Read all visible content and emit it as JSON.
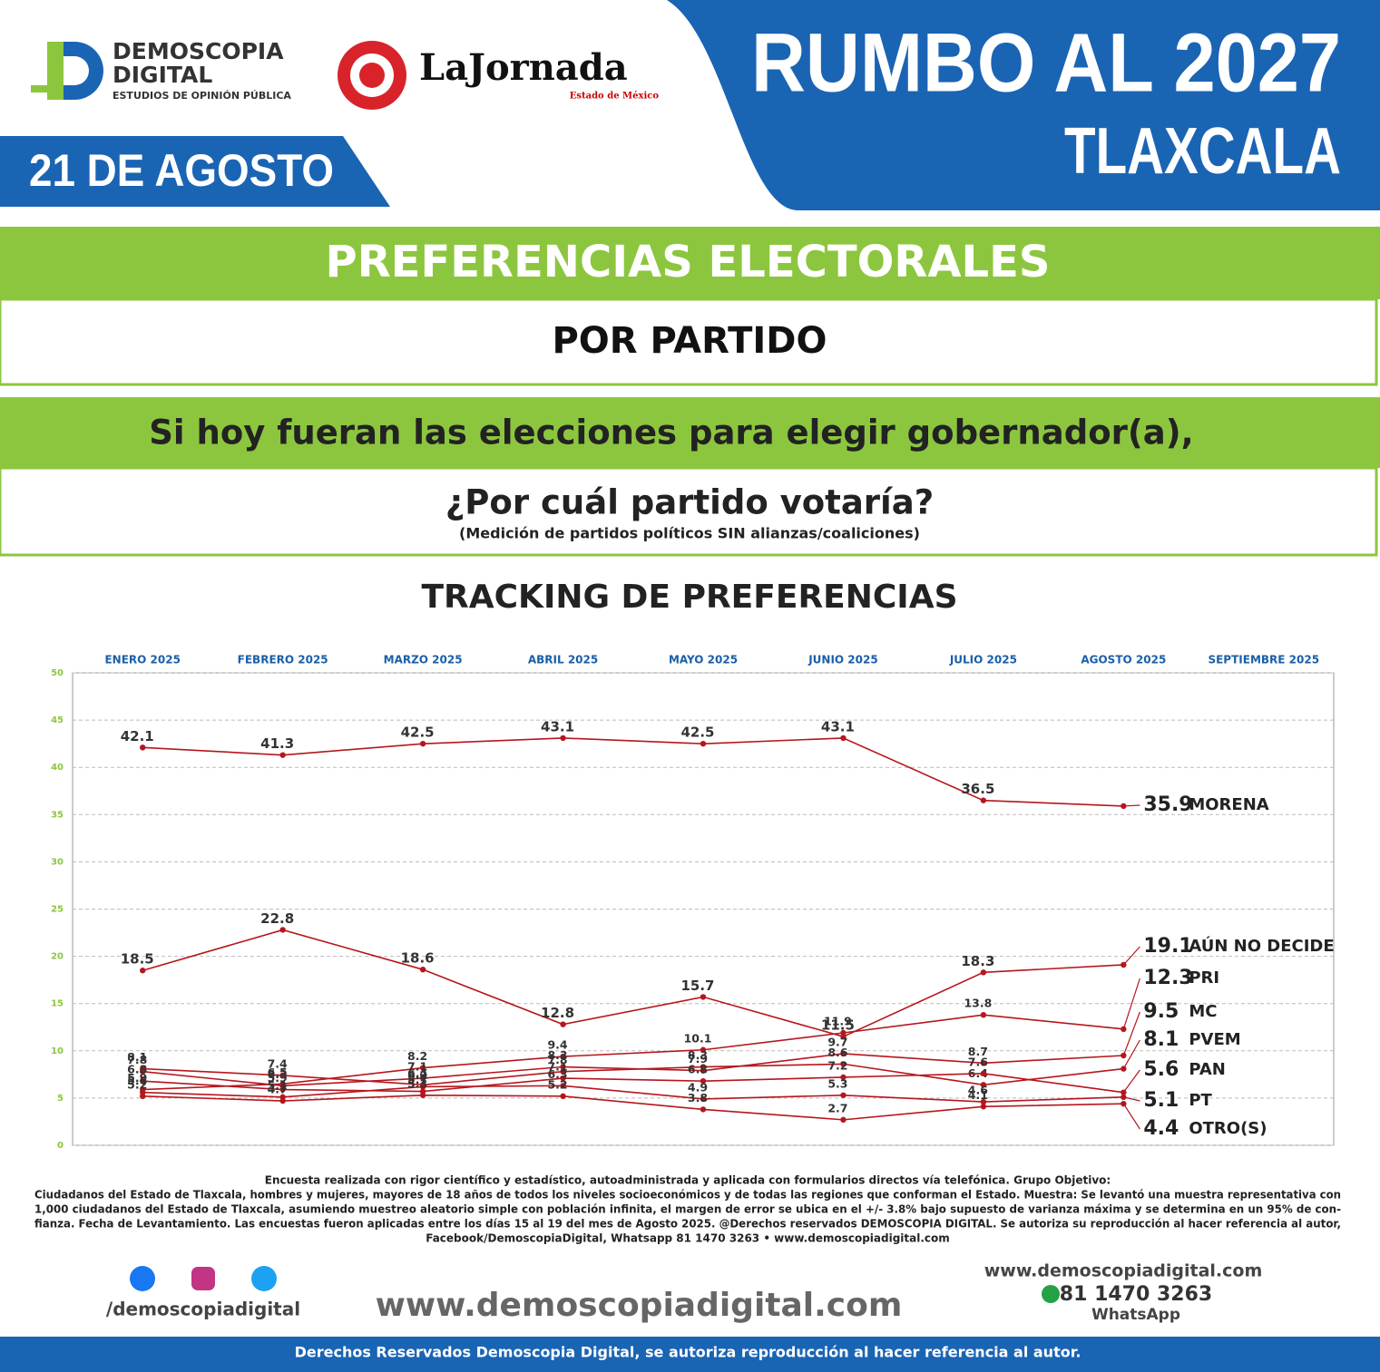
{
  "header": {
    "brand": [
      "DEMOSCOPIA",
      "DIGITAL",
      "ESTUDIOS DE OPINIÓN PÚBLICA"
    ],
    "partner": [
      "LaJornada",
      "Estado de México"
    ],
    "date": "21 DE AGOSTO",
    "title": "RUMBO AL 2027",
    "state": "TLAXCALA"
  },
  "banners": {
    "section": "PREFERENCIAS ELECTORALES",
    "subsection": "POR PARTIDO",
    "question_1": "Si hoy fueran las elecciones para elegir gobernador(a),",
    "question_2": "¿Por cuál partido votaría?",
    "note": "(Medición de partidos políticos SIN alianzas/coaliciones)"
  },
  "chart_data": {
    "type": "line",
    "title": "TRACKING DE PREFERENCIAS",
    "categories": [
      "ENERO 2025",
      "FEBRERO 2025",
      "MARZO 2025",
      "ABRIL 2025",
      "MAYO 2025",
      "JUNIO 2025",
      "JULIO 2025",
      "AGOSTO 2025",
      "SEPTIEMBRE 2025"
    ],
    "ylim": [
      0,
      50
    ],
    "yticks": [
      0,
      5,
      10,
      15,
      20,
      25,
      30,
      35,
      40,
      45,
      50
    ],
    "grid": true,
    "series": [
      {
        "name": "MORENA",
        "color": "#b5161d",
        "values": [
          42.1,
          41.3,
          42.5,
          43.1,
          42.5,
          43.1,
          36.5,
          35.9,
          null
        ]
      },
      {
        "name": "AÚN NO DECIDE",
        "color": "#b5161d",
        "values": [
          18.5,
          22.8,
          18.6,
          12.8,
          15.7,
          11.5,
          18.3,
          19.1,
          null
        ]
      },
      {
        "name": "PRI",
        "color": "#b5161d",
        "values": [
          5.9,
          6.5,
          8.2,
          9.4,
          10.1,
          11.9,
          13.8,
          12.3,
          null
        ]
      },
      {
        "name": "MC",
        "color": "#b5161d",
        "values": [
          7.8,
          6.3,
          7.1,
          8.3,
          7.9,
          9.7,
          8.7,
          9.5,
          null
        ]
      },
      {
        "name": "PVEM",
        "color": "#b5161d",
        "values": [
          8.1,
          7.4,
          6.4,
          7.8,
          8.3,
          8.6,
          6.4,
          8.1,
          null
        ]
      },
      {
        "name": "PAN",
        "color": "#b5161d",
        "values": [
          6.8,
          5.9,
          5.7,
          7.1,
          6.8,
          7.2,
          7.6,
          5.6,
          null
        ]
      },
      {
        "name": "PT",
        "color": "#b5161d",
        "values": [
          5.6,
          5.1,
          6.2,
          6.3,
          4.9,
          5.3,
          4.6,
          5.1,
          null
        ]
      },
      {
        "name": "OTRO(S)",
        "color": "#b5161d",
        "values": [
          5.2,
          4.7,
          5.3,
          5.2,
          3.8,
          2.7,
          4.1,
          4.4,
          null
        ]
      }
    ]
  },
  "footer": {
    "methodology": [
      "Encuesta realizada con rigor científico y estadístico, autoadministrada y aplicada con formularios directos vía telefónica. Grupo Objetivo:",
      "Ciudadanos del Estado de Tlaxcala, hombres y mujeres, mayores de 18 años de todos los niveles socioeconómicos y de todas las regiones que conforman el Estado. Muestra: Se levantó una muestra representativa con",
      "1,000 ciudadanos del Estado de Tlaxcala, asumiendo muestreo aleatorio simple con población infinita, el margen de error se ubica en el +/- 3.8% bajo supuesto de varianza máxima y se determina en un 95% de con-",
      "fianza. Fecha de Levantamiento. Las encuestas fueron aplicadas entre los días 15 al 19 del mes de Agosto 2025. @Derechos reservados DEMOSCOPIA DIGITAL. Se autoriza su reproducción al hacer referencia al autor,",
      "Facebook/DemoscopiaDigital, Whatsapp 81 1470 3263 • www.demoscopiadigital.com"
    ],
    "social_handle": "/demoscopiadigital",
    "website_big": "www.demoscopiadigital.com",
    "website": "www.demoscopiadigital.com",
    "phone": "81 1470 3263",
    "whatsapp": "WhatsApp",
    "rights": "Derechos Reservados Demoscopia Digital, se autoriza reproducción al hacer referencia al autor."
  }
}
